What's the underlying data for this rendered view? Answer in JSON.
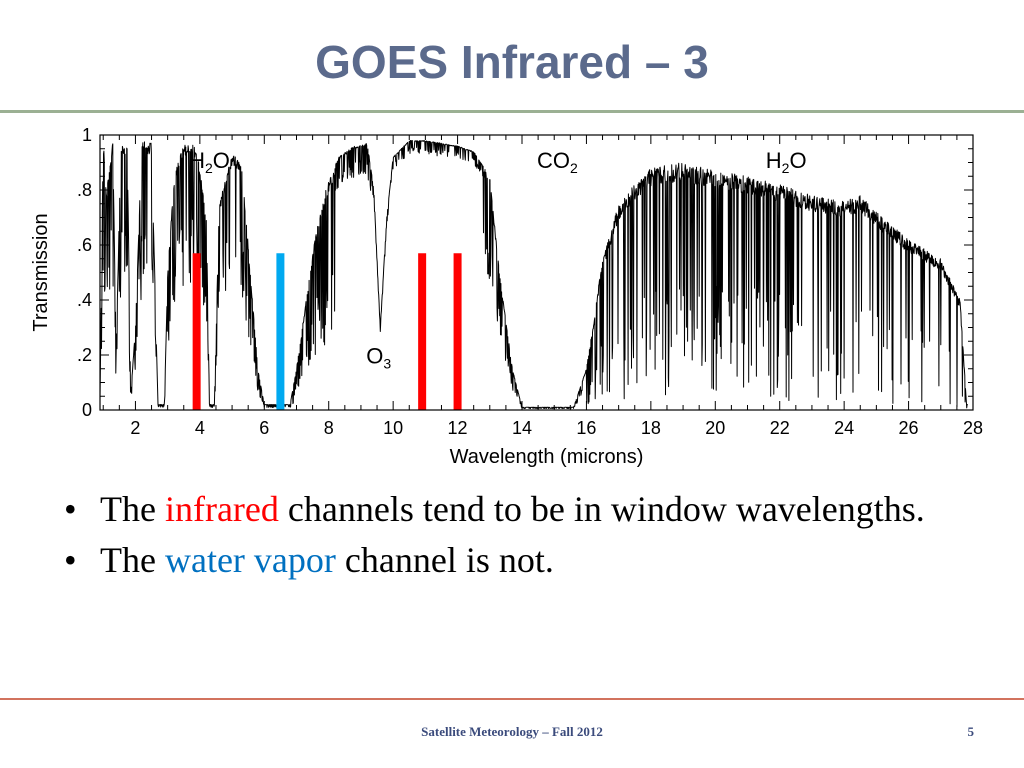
{
  "slide": {
    "title": "GOES Infrared – 3",
    "footer": "Satellite Meteorology – Fall 2012",
    "page_number": "5"
  },
  "bullets": [
    {
      "marker": "•",
      "before": "The ",
      "highlight": "infrared",
      "highlight_color": "#ff0000",
      "after": " channels tend to be in window wavelengths."
    },
    {
      "marker": "•",
      "before": "The ",
      "highlight": "water vapor",
      "highlight_color": "#0070c0",
      "after": " channel is not."
    }
  ],
  "chart_data": {
    "type": "line",
    "xlabel": "Wavelength (microns)",
    "ylabel": "Transmission",
    "xlim": [
      0.9,
      28
    ],
    "ylim": [
      0,
      1
    ],
    "x_ticks": [
      2,
      4,
      6,
      8,
      10,
      12,
      14,
      16,
      18,
      20,
      22,
      24,
      26,
      28
    ],
    "y_ticks": [
      {
        "value": 0,
        "label": "0"
      },
      {
        "value": 0.2,
        "label": ".2"
      },
      {
        "value": 0.4,
        "label": ".4"
      },
      {
        "value": 0.6,
        "label": ".6"
      },
      {
        "value": 0.8,
        "label": ".8"
      },
      {
        "value": 1,
        "label": "1"
      }
    ],
    "grid": false,
    "line_color": "#000000",
    "envelope": [
      [
        0.9,
        0.05
      ],
      [
        1.0,
        0.98
      ],
      [
        1.1,
        0.8
      ],
      [
        1.3,
        0.98
      ],
      [
        1.4,
        0.2
      ],
      [
        1.55,
        0.98
      ],
      [
        1.75,
        0.96
      ],
      [
        1.85,
        0.05
      ],
      [
        2.0,
        0.3
      ],
      [
        2.2,
        0.98
      ],
      [
        2.5,
        0.97
      ],
      [
        2.7,
        0.02
      ],
      [
        2.9,
        0.02
      ],
      [
        3.0,
        0.5
      ],
      [
        3.2,
        0.85
      ],
      [
        3.5,
        0.97
      ],
      [
        3.9,
        0.96
      ],
      [
        4.2,
        0.7
      ],
      [
        4.3,
        0.02
      ],
      [
        4.45,
        0.02
      ],
      [
        4.6,
        0.75
      ],
      [
        5.0,
        0.93
      ],
      [
        5.3,
        0.9
      ],
      [
        5.5,
        0.6
      ],
      [
        5.8,
        0.15
      ],
      [
        6.0,
        0.02
      ],
      [
        6.8,
        0.02
      ],
      [
        7.0,
        0.15
      ],
      [
        7.3,
        0.4
      ],
      [
        7.6,
        0.65
      ],
      [
        7.9,
        0.8
      ],
      [
        8.3,
        0.92
      ],
      [
        8.8,
        0.96
      ],
      [
        9.2,
        0.97
      ],
      [
        9.4,
        0.8
      ],
      [
        9.6,
        0.3
      ],
      [
        9.8,
        0.7
      ],
      [
        10.0,
        0.92
      ],
      [
        10.5,
        0.98
      ],
      [
        11.0,
        0.98
      ],
      [
        11.5,
        0.97
      ],
      [
        12.0,
        0.96
      ],
      [
        12.5,
        0.94
      ],
      [
        13.0,
        0.85
      ],
      [
        13.3,
        0.5
      ],
      [
        13.7,
        0.15
      ],
      [
        14.0,
        0.01
      ],
      [
        15.6,
        0.01
      ],
      [
        16.0,
        0.15
      ],
      [
        16.5,
        0.55
      ],
      [
        17.0,
        0.75
      ],
      [
        17.5,
        0.82
      ],
      [
        18.0,
        0.88
      ],
      [
        19.0,
        0.9
      ],
      [
        20.0,
        0.87
      ],
      [
        21.0,
        0.85
      ],
      [
        22.0,
        0.82
      ],
      [
        23.0,
        0.78
      ],
      [
        24.0,
        0.76
      ],
      [
        24.5,
        0.78
      ],
      [
        25.0,
        0.72
      ],
      [
        26.0,
        0.62
      ],
      [
        27.0,
        0.55
      ],
      [
        27.6,
        0.4
      ],
      [
        27.8,
        0.02
      ]
    ],
    "channels": [
      {
        "wavelength": 3.9,
        "height": 0.57,
        "color": "#ff0000",
        "name": "infrared"
      },
      {
        "wavelength": 6.5,
        "height": 0.57,
        "color": "#00a9f0",
        "name": "water vapor"
      },
      {
        "wavelength": 10.9,
        "height": 0.57,
        "color": "#ff0000",
        "name": "infrared"
      },
      {
        "wavelength": 12.0,
        "height": 0.57,
        "color": "#ff0000",
        "name": "infrared"
      }
    ],
    "annotations": [
      {
        "base": "H",
        "sub": "2",
        "tail": "O",
        "x": 4.3,
        "y": 0.88
      },
      {
        "base": "CO",
        "sub": "2",
        "tail": "",
        "x": 15.1,
        "y": 0.88
      },
      {
        "base": "H",
        "sub": "2",
        "tail": "O",
        "x": 22.2,
        "y": 0.88
      },
      {
        "base": "O",
        "sub": "3",
        "tail": "",
        "x": 9.55,
        "y": 0.17
      }
    ]
  }
}
